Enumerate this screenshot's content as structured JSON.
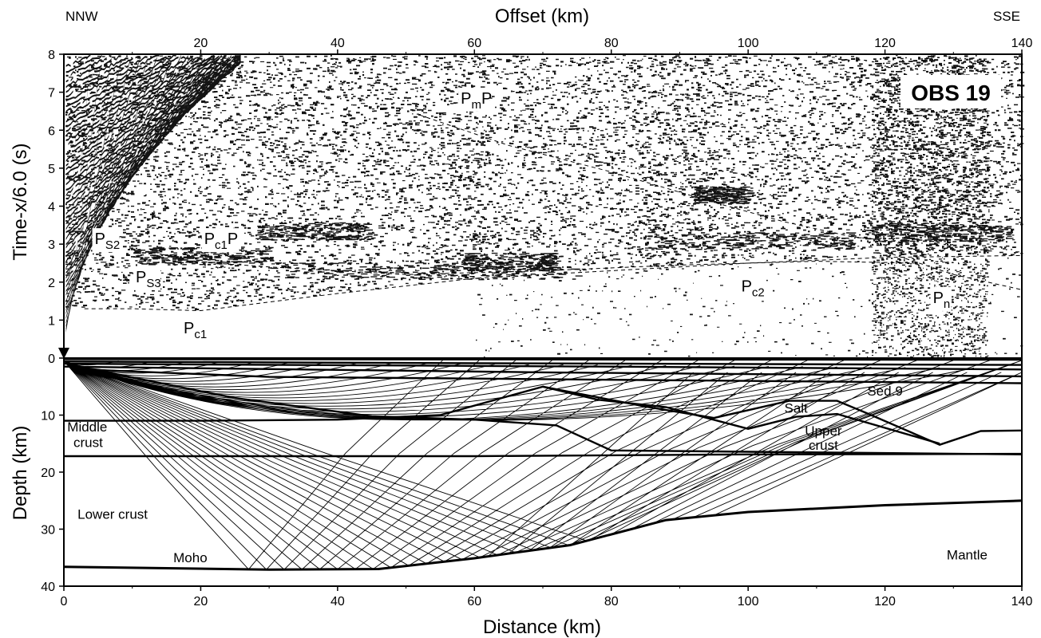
{
  "chart_data": [
    {
      "type": "scatter",
      "panel": "record-section",
      "title": "",
      "xlabel": "Offset (km)",
      "ylabel": "Time-x/6.0 (s)",
      "corner_left": "NNW",
      "corner_right": "SSE",
      "station_label": "OBS 19",
      "xlim": [
        0,
        140
      ],
      "ylim": [
        0,
        8
      ],
      "xticks": [
        20,
        40,
        60,
        80,
        100,
        120,
        140
      ],
      "yticks": [
        0,
        1,
        2,
        3,
        4,
        5,
        6,
        7,
        8
      ],
      "phases": [
        {
          "base": "P",
          "sub": "S2",
          "tail": "",
          "x": 4.5,
          "t": 3.0
        },
        {
          "base": "P",
          "sub": "S3",
          "tail": "",
          "x": 10.5,
          "t": 2.0
        },
        {
          "base": "P",
          "sub": "c1",
          "tail": "P",
          "x": 20.5,
          "t": 3.0
        },
        {
          "base": "P",
          "sub": "c1",
          "tail": "",
          "x": 17.5,
          "t": 0.65
        },
        {
          "base": "P",
          "sub": "m",
          "tail": "P",
          "x": 58,
          "t": 6.7
        },
        {
          "base": "P",
          "sub": "c2",
          "tail": "",
          "x": 99,
          "t": 1.75
        },
        {
          "base": "P",
          "sub": "n",
          "tail": "",
          "x": 127,
          "t": 1.45
        }
      ],
      "picked_traveltime_curves": [
        {
          "name": "Pc1",
          "points": [
            [
              3,
              1.3
            ],
            [
              10,
              1.3
            ],
            [
              20,
              1.25
            ],
            [
              40,
              1.7
            ],
            [
              60,
              2.1
            ],
            [
              80,
              2.3
            ],
            [
              100,
              2.5
            ],
            [
              120,
              2.65
            ],
            [
              140,
              2.7
            ]
          ]
        },
        {
          "name": "Pc1P",
          "points": [
            [
              18,
              2.55
            ],
            [
              30,
              2.4
            ],
            [
              50,
              2.2
            ],
            [
              70,
              2.3
            ],
            [
              90,
              2.45
            ],
            [
              110,
              2.55
            ],
            [
              125,
              2.5
            ]
          ]
        },
        {
          "name": "Pn",
          "points": [
            [
              120,
              2.8
            ],
            [
              130,
              2.2
            ],
            [
              140,
              1.8
            ]
          ]
        },
        {
          "name": "PmP",
          "points": [
            [
              52,
              6.4
            ],
            [
              65,
              5.6
            ],
            [
              80,
              4.9
            ],
            [
              95,
              4.1
            ],
            [
              105,
              3.6
            ],
            [
              115,
              3.2
            ],
            [
              125,
              3.0
            ]
          ]
        }
      ]
    },
    {
      "type": "line",
      "panel": "ray-diagram",
      "xlabel": "Distance (km)",
      "ylabel": "Depth (km)",
      "xlim": [
        0,
        140
      ],
      "ylim": [
        0,
        40
      ],
      "xticks": [
        0,
        20,
        40,
        60,
        80,
        100,
        120,
        140
      ],
      "yticks": [
        0,
        10,
        20,
        30,
        40
      ],
      "layer_labels": {
        "middle_crust_1": "Middle",
        "middle_crust_2": "crust",
        "upper_crust_1": "Upper",
        "upper_crust_2": "crust",
        "lower_crust": "Lower crust",
        "moho": "Moho",
        "mantle": "Mantle",
        "salt": "Salt",
        "sed9": "Sed.9"
      },
      "boundaries": [
        {
          "points": [
            [
              0,
              0.2
            ],
            [
              140,
              0.3
            ]
          ]
        },
        {
          "points": [
            [
              0,
              0.6
            ],
            [
              60,
              0.9
            ],
            [
              140,
              1.2
            ]
          ]
        },
        {
          "points": [
            [
              0,
              1.0
            ],
            [
              80,
              1.5
            ],
            [
              140,
              2.0
            ]
          ]
        },
        {
          "points": [
            [
              0,
              1.5
            ],
            [
              70,
              2.5
            ],
            [
              140,
              3.2
            ]
          ]
        },
        {
          "points": [
            [
              3,
              2.0
            ],
            [
              30,
              3.3
            ],
            [
              60,
              3.6
            ],
            [
              90,
              3.9
            ],
            [
              140,
              4.4
            ]
          ]
        },
        {
          "points": [
            [
              5,
              2.2
            ],
            [
              25,
              7.0
            ],
            [
              45,
              10.2
            ],
            [
              60,
              10.8
            ],
            [
              72,
              11.8
            ],
            [
              80,
              16.2
            ],
            [
              140,
              16.9
            ]
          ]
        },
        {
          "points": [
            [
              0,
              11.0
            ],
            [
              20,
              11.0
            ],
            [
              40,
              10.8
            ],
            [
              55,
              10.0
            ],
            [
              70,
              5.0
            ],
            [
              85,
              8.5
            ],
            [
              95,
              10.5
            ],
            [
              106,
              7.5
            ],
            [
              113,
              7.5
            ],
            [
              117,
              9.5
            ],
            [
              128,
              15.2
            ],
            [
              134,
              12.8
            ],
            [
              140,
              12.7
            ]
          ]
        },
        {
          "points": [
            [
              70,
              5.0
            ],
            [
              78,
              7.3
            ],
            [
              88,
              8.6
            ],
            [
              100,
              12.4
            ],
            [
              107,
              10.3
            ],
            [
              113,
              9.8
            ],
            [
              128,
              15.0
            ]
          ]
        },
        {
          "points": [
            [
              0,
              17.2
            ],
            [
              60,
              17.2
            ],
            [
              100,
              16.9
            ],
            [
              140,
              16.8
            ]
          ]
        },
        {
          "points": [
            [
              0,
              36.6
            ],
            [
              30,
              37.1
            ],
            [
              46,
              37.0
            ],
            [
              60,
              35.1
            ],
            [
              74,
              32.8
            ],
            [
              88,
              28.4
            ],
            [
              100,
              27.0
            ],
            [
              120,
              25.8
            ],
            [
              140,
              25.0
            ]
          ]
        }
      ]
    }
  ]
}
